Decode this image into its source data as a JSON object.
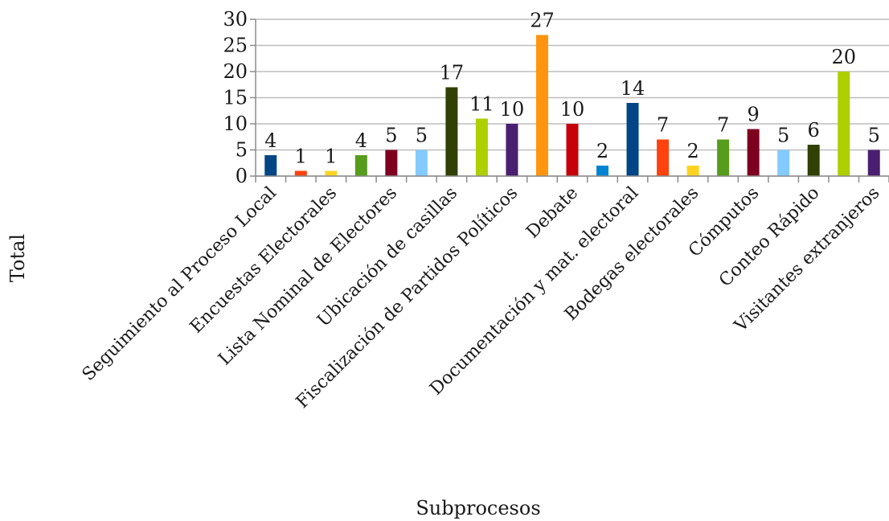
{
  "chart_data": {
    "type": "bar",
    "title": "",
    "xlabel": "Subprocesos",
    "ylabel": "Total",
    "ylim": [
      0,
      30
    ],
    "yticks": [
      0,
      5,
      10,
      15,
      20,
      25,
      30
    ],
    "grid": true,
    "legend": "none",
    "categories": [
      "Seguimiento al Proceso Local",
      "",
      "Encuestas Electorales",
      "",
      "Lista Nominal de Electores",
      "",
      "Ubicación de casillas",
      "",
      "Fiscalización de Partidos Políticos",
      "",
      "Debate",
      "",
      "Documentación y mat. electoral",
      "",
      "Bodegas electorales",
      "",
      "Cómputos",
      "",
      "Conteo Rápido",
      "",
      "Visitantes extranjeros"
    ],
    "values": [
      4,
      1,
      1,
      4,
      5,
      5,
      17,
      11,
      10,
      27,
      10,
      2,
      14,
      7,
      2,
      7,
      9,
      5,
      6,
      20,
      5
    ],
    "colors": [
      "#004586",
      "#ff420e",
      "#ffd320",
      "#579d1c",
      "#7e0021",
      "#83caff",
      "#314004",
      "#aecf00",
      "#4b1f6f",
      "#ff950e",
      "#c5000b",
      "#0084d1",
      "#004586",
      "#ff420e",
      "#ffd320",
      "#579d1c",
      "#7e0021",
      "#83caff",
      "#314004",
      "#aecf00",
      "#4b1f6f"
    ]
  }
}
